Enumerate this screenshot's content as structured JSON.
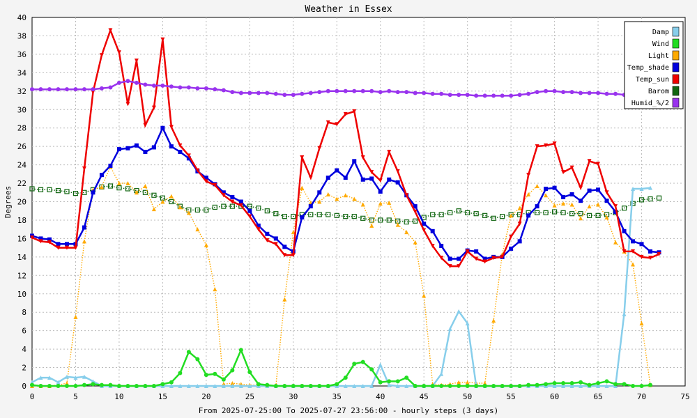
{
  "chart_data": {
    "type": "line",
    "title": "Weather in Essex",
    "xlabel": "From 2025-07-25:00 To 2025-07-27 23:56:00 - hourly steps (3 days)",
    "ylabel": "Degrees",
    "xlim": [
      0,
      75
    ],
    "ylim": [
      0,
      40
    ],
    "x_ticks": [
      0,
      5,
      10,
      15,
      20,
      25,
      30,
      35,
      40,
      45,
      50,
      55,
      60,
      65,
      70,
      75
    ],
    "y_ticks": [
      0,
      2,
      4,
      6,
      8,
      10,
      12,
      14,
      16,
      18,
      20,
      22,
      24,
      26,
      28,
      30,
      32,
      34,
      36,
      38,
      40
    ],
    "grid": true,
    "legend_position": "top-right",
    "series": [
      {
        "name": "Damp",
        "color": "#87ceeb",
        "marker": "triangle",
        "style": "solid",
        "values": [
          0.4,
          0.9,
          0.9,
          0.4,
          1.0,
          0.9,
          1.0,
          0.5,
          0,
          0,
          0,
          0,
          0,
          0,
          0,
          0,
          0,
          0,
          0,
          0,
          0,
          0,
          0,
          0,
          0,
          0,
          0,
          0,
          0,
          0,
          0,
          0,
          0,
          0,
          0,
          0,
          0,
          0,
          0,
          0,
          2.3,
          0.1,
          0,
          0,
          0,
          0,
          0,
          1.3,
          6.2,
          8.1,
          6.8,
          0,
          0,
          0,
          0,
          0,
          0,
          0,
          0,
          0,
          0,
          0,
          0,
          0,
          0,
          0,
          0,
          0,
          7.8,
          21.4,
          21.4,
          21.5
        ]
      },
      {
        "name": "Wind",
        "color": "#22dd22",
        "marker": "circle",
        "style": "solid",
        "values": [
          0.1,
          0,
          0,
          0,
          0,
          0,
          0.1,
          0.2,
          0.1,
          0.1,
          0,
          0,
          0,
          0,
          0,
          0.2,
          0.4,
          1.4,
          3.7,
          2.9,
          1.2,
          1.3,
          0.7,
          1.7,
          3.9,
          1.5,
          0.2,
          0.1,
          0,
          0,
          0,
          0,
          0,
          0,
          0,
          0.2,
          0.9,
          2.4,
          2.6,
          1.8,
          0.4,
          0.5,
          0.5,
          0.9,
          0,
          0,
          0,
          0,
          0,
          0,
          0,
          0,
          0,
          0,
          0,
          0,
          0,
          0.1,
          0.1,
          0.2,
          0.3,
          0.3,
          0.3,
          0.4,
          0.1,
          0.3,
          0.5,
          0.2,
          0.2,
          0,
          0,
          0.1
        ]
      },
      {
        "name": "Light",
        "color": "#ffaa00",
        "marker": "triangle",
        "style": "dotted",
        "values": [
          0,
          0,
          0,
          0.1,
          0.3,
          7.5,
          15.7,
          21.3,
          21.6,
          23.8,
          22.0,
          22.0,
          21.0,
          21.7,
          19.2,
          20.0,
          20.6,
          19.4,
          18.8,
          17.0,
          15.3,
          10.5,
          0.2,
          0.3,
          0.2,
          0.1,
          0.1,
          0.1,
          0,
          9.4,
          16.7,
          21.5,
          19.9,
          20.0,
          20.8,
          20.3,
          20.7,
          20.3,
          19.7,
          17.4,
          19.8,
          19.9,
          17.5,
          16.7,
          15.6,
          9.8,
          0.2,
          0.1,
          0.2,
          0.4,
          0.4,
          0.3,
          0.3,
          7.1,
          14.3,
          18.5,
          19.3,
          20.8,
          21.7,
          20.7,
          19.6,
          19.8,
          19.7,
          18.2,
          19.5,
          19.7,
          18.3,
          15.6,
          14.6,
          13.2,
          6.8,
          0.1
        ]
      },
      {
        "name": "Temp_shade",
        "color": "#0000dd",
        "marker": "square",
        "style": "solid",
        "values": [
          16.3,
          16.0,
          15.9,
          15.4,
          15.4,
          15.4,
          17.2,
          21.0,
          22.9,
          23.9,
          25.7,
          25.8,
          26.1,
          25.4,
          25.9,
          28.0,
          26.0,
          25.4,
          24.7,
          23.3,
          22.6,
          21.9,
          21.0,
          20.5,
          20.0,
          19.0,
          17.4,
          16.5,
          16.0,
          15.1,
          14.6,
          18.3,
          19.5,
          21.0,
          22.6,
          23.4,
          22.6,
          24.4,
          22.4,
          22.5,
          21.1,
          22.4,
          22.1,
          20.7,
          19.5,
          17.6,
          16.8,
          15.2,
          13.8,
          13.8,
          14.7,
          14.6,
          13.8,
          14.0,
          14.0,
          14.9,
          15.7,
          18.5,
          19.5,
          21.4,
          21.5,
          20.5,
          20.8,
          20.1,
          21.2,
          21.3,
          20.1,
          18.9,
          16.8,
          15.7,
          15.4,
          14.6,
          14.5
        ]
      },
      {
        "name": "Temp_sun",
        "color": "#ee0000",
        "marker": "triangle-down",
        "style": "solid",
        "values": [
          16.1,
          15.7,
          15.6,
          15.0,
          15.0,
          15.0,
          23.6,
          31.9,
          35.9,
          38.6,
          36.2,
          30.6,
          35.3,
          28.3,
          30.2,
          37.6,
          28.1,
          26.1,
          25.0,
          23.4,
          22.2,
          21.8,
          20.7,
          20.0,
          19.6,
          18.4,
          17.0,
          15.8,
          15.4,
          14.2,
          14.2,
          24.8,
          22.6,
          25.8,
          28.6,
          28.4,
          29.5,
          29.8,
          24.8,
          23.2,
          22.3,
          25.4,
          23.3,
          20.7,
          18.9,
          16.9,
          15.2,
          13.9,
          13.0,
          13.0,
          14.6,
          13.8,
          13.5,
          13.9,
          14.0,
          16.2,
          17.6,
          22.9,
          26.0,
          26.1,
          26.3,
          23.2,
          23.7,
          21.5,
          24.4,
          24.1,
          21.0,
          19.5,
          14.6,
          14.6,
          14.0,
          13.9,
          14.3
        ]
      },
      {
        "name": "Barom",
        "color": "#116611",
        "marker": "hollow-square",
        "style": "dotted",
        "values": [
          21.4,
          21.3,
          21.3,
          21.2,
          21.1,
          20.9,
          21.0,
          21.3,
          21.6,
          21.7,
          21.5,
          21.4,
          21.2,
          21.0,
          20.7,
          20.4,
          20.0,
          19.5,
          19.1,
          19.1,
          19.1,
          19.4,
          19.5,
          19.5,
          19.5,
          19.5,
          19.3,
          19.0,
          18.7,
          18.4,
          18.4,
          18.6,
          18.6,
          18.6,
          18.6,
          18.5,
          18.4,
          18.4,
          18.2,
          18.0,
          18.0,
          18.0,
          17.9,
          17.8,
          17.9,
          18.3,
          18.6,
          18.6,
          18.8,
          19.0,
          18.8,
          18.7,
          18.5,
          18.2,
          18.4,
          18.6,
          18.6,
          18.8,
          18.8,
          18.8,
          18.9,
          18.8,
          18.7,
          18.7,
          18.5,
          18.5,
          18.6,
          18.8,
          19.3,
          19.8,
          20.2,
          20.3,
          20.4
        ]
      },
      {
        "name": "Humid_%/2",
        "color": "#9933ee",
        "marker": "circle",
        "style": "solid",
        "values": [
          32.2,
          32.2,
          32.2,
          32.2,
          32.2,
          32.2,
          32.2,
          32.2,
          32.3,
          32.4,
          32.9,
          33.1,
          32.9,
          32.7,
          32.6,
          32.6,
          32.5,
          32.4,
          32.4,
          32.3,
          32.3,
          32.2,
          32.1,
          31.9,
          31.8,
          31.8,
          31.8,
          31.8,
          31.7,
          31.6,
          31.6,
          31.7,
          31.8,
          31.9,
          32.0,
          32.0,
          32.0,
          32.0,
          32.0,
          32.0,
          31.9,
          32.0,
          31.9,
          31.9,
          31.8,
          31.8,
          31.7,
          31.7,
          31.6,
          31.6,
          31.6,
          31.5,
          31.5,
          31.5,
          31.5,
          31.5,
          31.6,
          31.7,
          31.9,
          32.0,
          32.0,
          31.9,
          31.9,
          31.8,
          31.8,
          31.8,
          31.7,
          31.7,
          31.6,
          31.6,
          31.6,
          31.6
        ]
      }
    ]
  }
}
